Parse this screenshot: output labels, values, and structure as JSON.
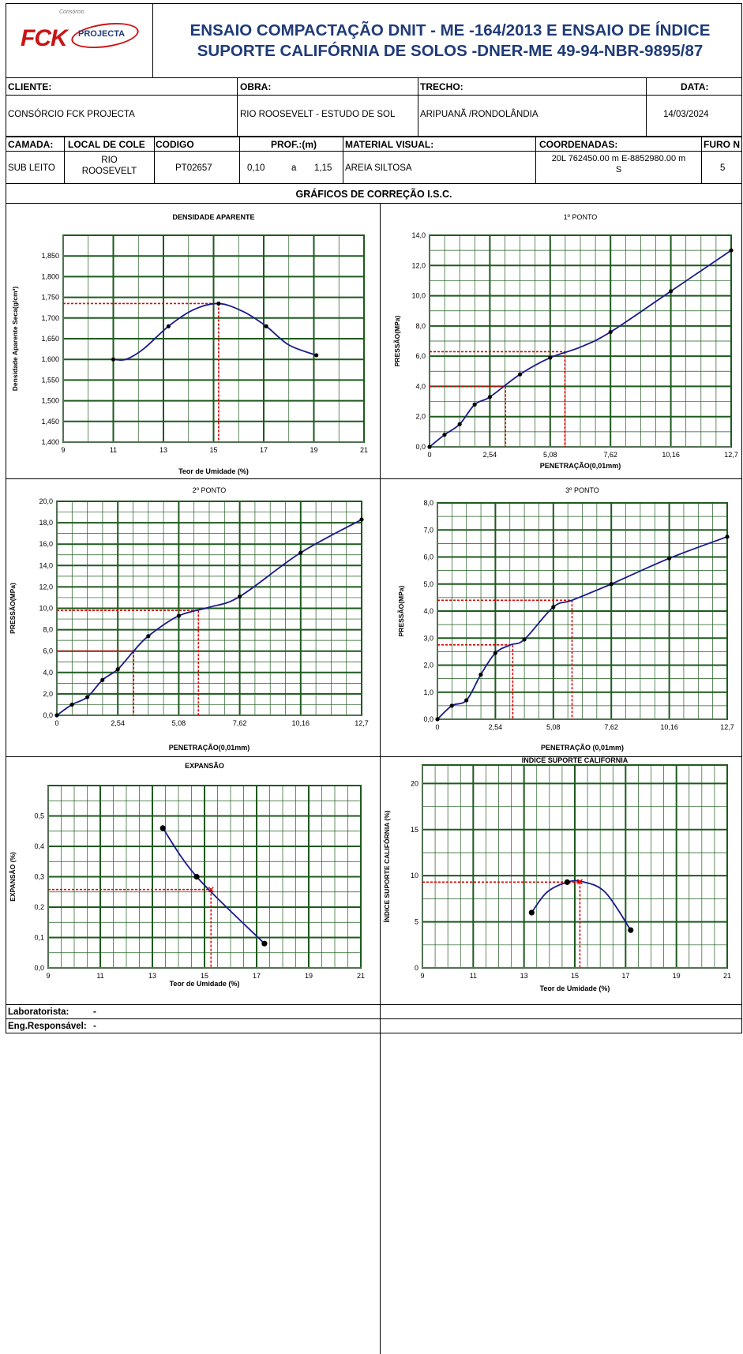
{
  "header": {
    "logo_small": "Consórcio",
    "logo_fck": "FCK",
    "logo_projecta": "PROJECTA",
    "title_line1": "ENSAIO COMPACTAÇÃO DNIT - ME -164/2013 E ENSAIO DE ÍNDICE",
    "title_line2": "SUPORTE CALIFÓRNIA DE SOLOS -DNER-ME 49-94-NBR-9895/87",
    "title_color": "#1f3b78"
  },
  "info": {
    "cliente_label": "CLIENTE:",
    "cliente_value": "CONSÓRCIO FCK PROJECTA",
    "obra_label": "OBRA:",
    "obra_value": "RIO ROOSEVELT - ESTUDO DE SOL",
    "trecho_label": "TRECHO:",
    "trecho_value": "ARIPUANÃ /RONDOLÂNDIA",
    "data_label": "DATA:",
    "data_value": "14/03/2024",
    "camada_label": "CAMADA:",
    "camada_value": "SUB LEITO",
    "local_label": "LOCAL DE COLE",
    "local_value_1": "RIO",
    "local_value_2": "ROOSEVELT",
    "codigo_label": "CODIGO",
    "codigo_value": "PT02657",
    "prof_label": "PROF.:(m)",
    "prof_from": "0,10",
    "prof_sep": "a",
    "prof_to": "1,15",
    "material_label": "MATERIAL VISUAL:",
    "material_value": "AREIA SILTOSA",
    "coord_label": "COORDENADAS:",
    "coord_value_1": "20L 762450.00 m E-8852980.00 m",
    "coord_value_2": "S",
    "furo_label": "FURO N",
    "furo_value": "5"
  },
  "section_title": "GRÁFICOS DE CORREÇÃO I.S.C.",
  "footer": {
    "lab_label": "Laboratorista:",
    "lab_value": "-",
    "eng_label": "Eng.Responsável:",
    "eng_value": "-"
  },
  "colors": {
    "grid": "#1e5a1e",
    "curve": "#1a1a8c",
    "guide": "#e00000",
    "point": "#000000"
  },
  "chart_data": [
    {
      "id": "densidade",
      "type": "line",
      "title": "DENSIDADE APARENTE",
      "xlabel": "Teor de Umidade  (%)",
      "ylabel": "Densidade Aparente Seca(g/cm³)",
      "xlim": [
        9,
        21
      ],
      "ylim": [
        1.4,
        1.9
      ],
      "xticks": [
        9,
        11,
        13,
        15,
        17,
        19,
        21
      ],
      "xtick_labels": [
        "9",
        "11",
        "13",
        "15",
        "17",
        "19",
        "21"
      ],
      "yticks": [
        1.4,
        1.45,
        1.5,
        1.55,
        1.6,
        1.65,
        1.7,
        1.75,
        1.8,
        1.85
      ],
      "ytick_labels": [
        "1,400",
        "1,450",
        "1,500",
        "1,550",
        "1,600",
        "1,650",
        "1,700",
        "1,750",
        "1,800",
        "1,850"
      ],
      "xminor": 1,
      "yminor": 0.05,
      "points": [
        [
          11,
          1.6
        ],
        [
          13.2,
          1.68
        ],
        [
          15.2,
          1.735
        ],
        [
          17.1,
          1.68
        ],
        [
          19.1,
          1.61
        ]
      ],
      "curve": [
        [
          11,
          1.6
        ],
        [
          11.5,
          1.6
        ],
        [
          12.2,
          1.625
        ],
        [
          13.2,
          1.68
        ],
        [
          14.2,
          1.72
        ],
        [
          15.2,
          1.735
        ],
        [
          16.2,
          1.715
        ],
        [
          17.1,
          1.68
        ],
        [
          18.0,
          1.635
        ],
        [
          19.1,
          1.61
        ]
      ],
      "guides": [
        [
          [
            9,
            1.735
          ],
          [
            15.2,
            1.735
          ]
        ],
        [
          [
            15.2,
            1.735
          ],
          [
            15.2,
            1.4
          ]
        ]
      ]
    },
    {
      "id": "ponto1",
      "type": "line",
      "title": "1º PONTO",
      "xlabel": "PENETRAÇÃO(0,01mm)",
      "ylabel": "PRESSÃO(MPa)",
      "xlim": [
        0,
        12.7
      ],
      "ylim": [
        0,
        14
      ],
      "xticks": [
        0,
        2.54,
        5.08,
        7.62,
        10.16,
        12.7
      ],
      "xtick_labels": [
        "0",
        "2,54",
        "5,08",
        "7,62",
        "10,16",
        "12,7"
      ],
      "yticks": [
        0,
        2,
        4,
        6,
        8,
        10,
        12,
        14
      ],
      "ytick_labels": [
        "0,0",
        "2,0",
        "4,0",
        "6,0",
        "8,0",
        "10,0",
        "12,0",
        "14,0"
      ],
      "xminor": 0.635,
      "yminor": 1,
      "points": [
        [
          0,
          0
        ],
        [
          0.63,
          0.8
        ],
        [
          1.27,
          1.5
        ],
        [
          1.9,
          2.8
        ],
        [
          2.54,
          3.3
        ],
        [
          3.81,
          4.8
        ],
        [
          5.08,
          5.9
        ],
        [
          7.62,
          7.6
        ],
        [
          10.16,
          10.3
        ],
        [
          12.7,
          13
        ]
      ],
      "curve": [
        [
          0,
          0
        ],
        [
          0.63,
          0.8
        ],
        [
          1.27,
          1.5
        ],
        [
          1.9,
          2.8
        ],
        [
          2.54,
          3.3
        ],
        [
          3.81,
          4.8
        ],
        [
          5.08,
          5.9
        ],
        [
          6.35,
          6.6
        ],
        [
          7.62,
          7.6
        ],
        [
          10.16,
          10.3
        ],
        [
          12.7,
          13
        ]
      ],
      "guides": [
        [
          [
            0,
            4.0
          ],
          [
            3.2,
            4.0
          ]
        ],
        [
          [
            3.2,
            4.0
          ],
          [
            3.2,
            0
          ]
        ],
        [
          [
            0,
            6.3
          ],
          [
            5.7,
            6.3
          ]
        ],
        [
          [
            5.7,
            6.3
          ],
          [
            5.7,
            0
          ]
        ]
      ]
    },
    {
      "id": "ponto2",
      "type": "line",
      "title": "2º PONTO",
      "xlabel": "PENETRAÇÃO(0,01mm)",
      "ylabel": "PRESSÃO(MPa)",
      "xlim": [
        0,
        12.7
      ],
      "ylim": [
        0,
        20
      ],
      "xticks": [
        0,
        2.54,
        5.08,
        7.62,
        10.16,
        12.7
      ],
      "xtick_labels": [
        "0",
        "2,54",
        "5,08",
        "7,62",
        "10,16",
        "12,7"
      ],
      "yticks": [
        0,
        2,
        4,
        6,
        8,
        10,
        12,
        14,
        16,
        18,
        20
      ],
      "ytick_labels": [
        "0,0",
        "2,0",
        "4,0",
        "6,0",
        "8,0",
        "10,0",
        "12,0",
        "14,0",
        "16,0",
        "18,0",
        "20,0"
      ],
      "xminor": 0.635,
      "yminor": 1,
      "points": [
        [
          0,
          0
        ],
        [
          0.63,
          1.0
        ],
        [
          1.27,
          1.7
        ],
        [
          1.9,
          3.3
        ],
        [
          2.54,
          4.3
        ],
        [
          3.81,
          7.4
        ],
        [
          5.08,
          9.3
        ],
        [
          7.62,
          11.1
        ],
        [
          10.16,
          15.2
        ],
        [
          12.7,
          18.3
        ]
      ],
      "curve": [
        [
          0,
          0
        ],
        [
          0.63,
          1.0
        ],
        [
          1.27,
          1.7
        ],
        [
          1.9,
          3.3
        ],
        [
          2.54,
          4.3
        ],
        [
          3.2,
          6.0
        ],
        [
          3.81,
          7.4
        ],
        [
          5.08,
          9.3
        ],
        [
          6.35,
          10.1
        ],
        [
          7.62,
          11.1
        ],
        [
          10.16,
          15.2
        ],
        [
          12.7,
          18.3
        ]
      ],
      "guides": [
        [
          [
            0,
            6.0
          ],
          [
            3.2,
            6.0
          ]
        ],
        [
          [
            3.2,
            6.0
          ],
          [
            3.2,
            0
          ]
        ],
        [
          [
            0,
            9.8
          ],
          [
            5.9,
            9.8
          ]
        ],
        [
          [
            5.9,
            9.8
          ],
          [
            5.9,
            0
          ]
        ]
      ]
    },
    {
      "id": "ponto3",
      "type": "line",
      "title": "3º PONTO",
      "xlabel": "PENETRAÇÃO  (0,01mm)",
      "ylabel": "PRESSÃO(MPa)",
      "xlim": [
        0,
        12.7
      ],
      "ylim": [
        0,
        8
      ],
      "xticks": [
        0,
        2.54,
        5.08,
        7.62,
        10.16,
        12.7
      ],
      "xtick_labels": [
        "0",
        "2,54",
        "5,08",
        "7,62",
        "10,16",
        "12,7"
      ],
      "yticks": [
        0,
        1,
        2,
        3,
        4,
        5,
        6,
        7,
        8
      ],
      "ytick_labels": [
        "0,0",
        "1,0",
        "2,0",
        "3,0",
        "4,0",
        "5,0",
        "6,0",
        "7,0",
        "8,0"
      ],
      "xminor": 0.635,
      "yminor": 0.5,
      "points": [
        [
          0,
          0
        ],
        [
          0.63,
          0.5
        ],
        [
          1.27,
          0.7
        ],
        [
          1.9,
          1.65
        ],
        [
          2.54,
          2.45
        ],
        [
          3.81,
          2.95
        ],
        [
          5.08,
          4.15
        ],
        [
          7.62,
          5.0
        ],
        [
          10.16,
          5.95
        ],
        [
          12.7,
          6.75
        ]
      ],
      "curve": [
        [
          0,
          0
        ],
        [
          0.63,
          0.5
        ],
        [
          1.27,
          0.7
        ],
        [
          1.9,
          1.65
        ],
        [
          2.54,
          2.45
        ],
        [
          3.2,
          2.75
        ],
        [
          3.81,
          2.95
        ],
        [
          5.08,
          4.15
        ],
        [
          5.9,
          4.4
        ],
        [
          7.62,
          5.0
        ],
        [
          10.16,
          5.95
        ],
        [
          12.7,
          6.75
        ]
      ],
      "guides": [
        [
          [
            0,
            2.75
          ],
          [
            3.3,
            2.75
          ]
        ],
        [
          [
            3.3,
            2.75
          ],
          [
            3.3,
            0
          ]
        ],
        [
          [
            0,
            4.4
          ],
          [
            5.9,
            4.4
          ]
        ],
        [
          [
            5.9,
            4.4
          ],
          [
            5.9,
            0
          ]
        ]
      ]
    },
    {
      "id": "expansao",
      "type": "line",
      "title": "EXPANSÃO",
      "xlabel": "Teor de Umidade  (%)",
      "ylabel": "EXPANSÃO (%)",
      "xlim": [
        9,
        21
      ],
      "ylim": [
        0,
        0.6
      ],
      "xticks": [
        9,
        11,
        13,
        15,
        17,
        19,
        21
      ],
      "xtick_labels": [
        "9",
        "11",
        "13",
        "15",
        "17",
        "19",
        "21"
      ],
      "yticks": [
        0,
        0.1,
        0.2,
        0.3,
        0.4,
        0.5
      ],
      "ytick_labels": [
        "0,0",
        "0,1",
        "0,2",
        "0,3",
        "0,4",
        "0,5"
      ],
      "xminor": 0.5,
      "yminor": 0.05,
      "points": [
        [
          13.4,
          0.46
        ],
        [
          14.7,
          0.3
        ],
        [
          17.3,
          0.08
        ]
      ],
      "curve": [
        [
          13.4,
          0.46
        ],
        [
          14.7,
          0.3
        ],
        [
          17.3,
          0.08
        ]
      ],
      "guides": [
        [
          [
            9,
            0.258
          ],
          [
            15.25,
            0.258
          ]
        ],
        [
          [
            15.25,
            0.258
          ],
          [
            15.25,
            0
          ]
        ]
      ],
      "marker": [
        15.25,
        0.258
      ]
    },
    {
      "id": "isc",
      "type": "line",
      "title": "ÍNDICE SUPORTE CALIFÓRNIA",
      "xlabel": "Teor de Umidade  (%)",
      "ylabel": "ÍNDICE SUPORTE CALIFÓRNIA (%)",
      "xlim": [
        9,
        21
      ],
      "ylim": [
        0,
        22
      ],
      "xticks": [
        9,
        11,
        13,
        15,
        17,
        19,
        21
      ],
      "xtick_labels": [
        "9",
        "11",
        "13",
        "15",
        "17",
        "19",
        "21"
      ],
      "yticks": [
        0,
        5,
        10,
        15,
        20
      ],
      "ytick_labels": [
        "0",
        "5",
        "10",
        "15",
        "20"
      ],
      "xminor": 0.5,
      "yminor": 2.5,
      "points": [
        [
          13.3,
          6.0
        ],
        [
          14.7,
          9.3
        ],
        [
          17.2,
          4.1
        ]
      ],
      "curve": [
        [
          13.3,
          6.0
        ],
        [
          13.9,
          8.2
        ],
        [
          14.7,
          9.3
        ],
        [
          15.3,
          9.35
        ],
        [
          16.2,
          8.2
        ],
        [
          17.2,
          4.1
        ]
      ],
      "guides": [
        [
          [
            9,
            9.3
          ],
          [
            15.2,
            9.3
          ]
        ],
        [
          [
            15.2,
            9.3
          ],
          [
            15.2,
            0
          ]
        ]
      ],
      "marker": [
        15.2,
        9.35
      ]
    }
  ]
}
